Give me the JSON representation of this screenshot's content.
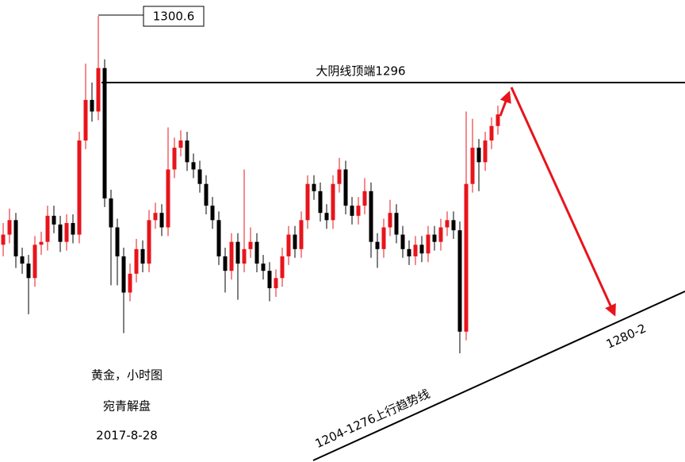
{
  "chart_data": {
    "type": "candlestick",
    "title": "黄金，小时图",
    "subtitle": "宛青解盘",
    "date": "2017-8-28",
    "peak": 1300.6,
    "level": {
      "text": "大阴线顶端1296",
      "value": 1296
    },
    "trendline_label": "1204-1276上行趋势线",
    "target_label": "1280-2",
    "up_color": "#e8141b",
    "down_color": "#000000",
    "ylim": [
      1269.8,
      1301.7
    ],
    "open": [
      1284.8,
      1285.5,
      1286.5,
      1284.0,
      1283.5,
      1282.5,
      1284.8,
      1285.0,
      1286.8,
      1286.2,
      1285.0,
      1286.3,
      1285.5,
      1292.0,
      1294.8,
      1294.0,
      1297.0,
      1288.0,
      1286.0,
      1284.0,
      1281.5,
      1282.8,
      1284.5,
      1283.5,
      1286.5,
      1287.0,
      1286.0,
      1290.0,
      1291.5,
      1292.0,
      1290.5,
      1290.0,
      1289.0,
      1287.5,
      1286.5,
      1284.0,
      1283.0,
      1285.0,
      1283.5,
      1284.5,
      1285.0,
      1283.5,
      1283.0,
      1281.8,
      1282.5,
      1284.0,
      1285.5,
      1284.5,
      1286.5,
      1289.0,
      1288.5,
      1287.0,
      1286.5,
      1289.0,
      1290.0,
      1287.5,
      1286.8,
      1287.5,
      1288.5,
      1285.0,
      1284.5,
      1286.0,
      1287.0,
      1285.5,
      1284.5,
      1284.0,
      1284.8,
      1284.2,
      1285.5,
      1285.0,
      1286.0,
      1286.5,
      1285.8,
      1278.8,
      1289.0,
      1291.5,
      1290.5,
      1292.0,
      1293.0
    ],
    "high": [
      1286.3,
      1287.3,
      1287.0,
      1284.6,
      1284.1,
      1285.4,
      1285.7,
      1287.5,
      1287.5,
      1286.8,
      1286.9,
      1286.9,
      1292.6,
      1297.3,
      1296.0,
      1300.6,
      1297.6,
      1288.6,
      1286.6,
      1284.6,
      1283.5,
      1285.2,
      1285.1,
      1287.2,
      1287.7,
      1287.6,
      1292.9,
      1292.2,
      1292.7,
      1292.6,
      1291.1,
      1290.6,
      1289.6,
      1288.1,
      1287.1,
      1284.6,
      1285.6,
      1285.6,
      1290.0,
      1286.0,
      1285.6,
      1284.1,
      1283.6,
      1283.1,
      1284.6,
      1286.1,
      1286.1,
      1287.1,
      1289.6,
      1289.6,
      1289.1,
      1287.6,
      1289.6,
      1290.8,
      1290.6,
      1288.1,
      1288.1,
      1289.4,
      1289.1,
      1285.6,
      1286.6,
      1287.9,
      1287.6,
      1286.1,
      1285.1,
      1285.4,
      1285.4,
      1286.1,
      1286.1,
      1286.6,
      1287.1,
      1287.1,
      1286.4,
      1294.0,
      1293.5,
      1292.1,
      1292.6,
      1293.6,
      1294.4
    ],
    "low": [
      1284.0,
      1284.9,
      1283.2,
      1282.8,
      1280.0,
      1281.9,
      1284.1,
      1284.4,
      1285.6,
      1284.3,
      1284.4,
      1284.9,
      1284.9,
      1291.4,
      1293.3,
      1293.4,
      1287.4,
      1282.0,
      1282.0,
      1278.7,
      1280.9,
      1282.2,
      1282.9,
      1282.9,
      1285.9,
      1285.4,
      1285.4,
      1289.4,
      1290.9,
      1289.9,
      1289.4,
      1288.4,
      1286.9,
      1285.9,
      1283.4,
      1281.5,
      1282.4,
      1281.0,
      1282.9,
      1283.9,
      1282.9,
      1282.4,
      1280.9,
      1281.2,
      1281.9,
      1283.4,
      1283.9,
      1283.9,
      1285.9,
      1287.9,
      1286.4,
      1285.9,
      1285.9,
      1288.4,
      1286.9,
      1286.2,
      1286.2,
      1286.9,
      1283.9,
      1283.2,
      1283.9,
      1285.4,
      1284.9,
      1283.9,
      1283.4,
      1283.4,
      1283.6,
      1283.6,
      1284.4,
      1284.4,
      1285.4,
      1285.2,
      1277.3,
      1278.2,
      1288.4,
      1288.5,
      1289.9,
      1291.4,
      1292.4
    ],
    "close": [
      1285.5,
      1286.5,
      1284.0,
      1283.5,
      1282.5,
      1284.8,
      1285.0,
      1286.8,
      1286.2,
      1285.0,
      1286.3,
      1285.5,
      1292.0,
      1294.8,
      1294.0,
      1297.0,
      1288.0,
      1286.0,
      1284.0,
      1281.5,
      1282.8,
      1284.5,
      1283.5,
      1286.5,
      1287.0,
      1286.0,
      1290.0,
      1291.5,
      1292.0,
      1290.5,
      1290.0,
      1289.0,
      1287.5,
      1286.5,
      1284.0,
      1283.0,
      1285.0,
      1283.5,
      1284.5,
      1285.0,
      1283.5,
      1283.0,
      1281.8,
      1282.5,
      1284.0,
      1285.5,
      1284.5,
      1286.5,
      1289.0,
      1288.5,
      1287.0,
      1286.5,
      1289.0,
      1290.0,
      1287.5,
      1286.8,
      1287.5,
      1288.5,
      1285.0,
      1284.5,
      1286.0,
      1287.0,
      1285.5,
      1284.5,
      1284.0,
      1284.8,
      1284.2,
      1285.5,
      1285.0,
      1286.0,
      1286.5,
      1285.8,
      1278.8,
      1289.0,
      1291.5,
      1290.5,
      1292.0,
      1293.0,
      1293.8
    ]
  }
}
